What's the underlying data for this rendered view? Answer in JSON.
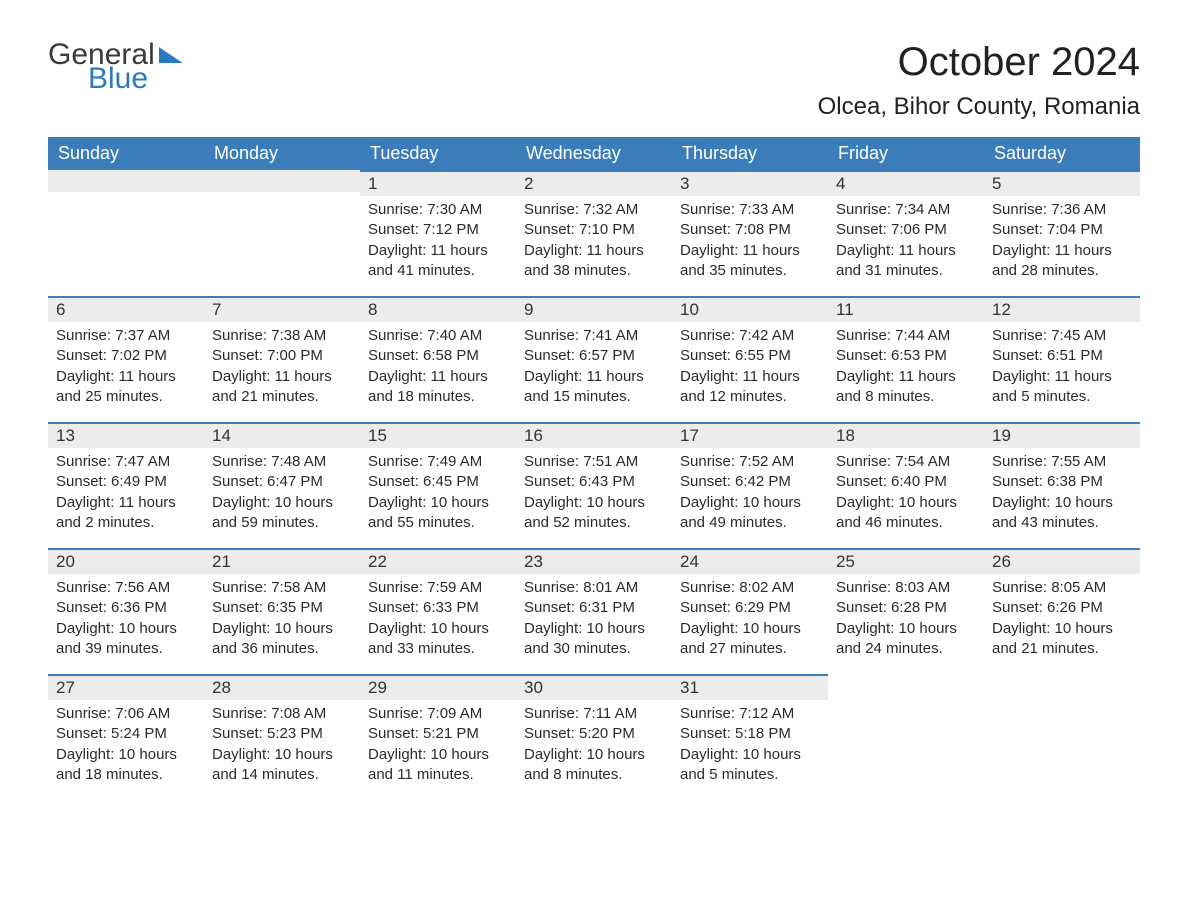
{
  "brand": {
    "word1": "General",
    "word2": "Blue"
  },
  "title": "October 2024",
  "location": "Olcea, Bihor County, Romania",
  "colors": {
    "header_bg": "#3b7dbb",
    "header_text": "#ffffff",
    "daynum_bg": "#ececec",
    "daynum_border": "#3b7dbb",
    "body_text": "#2b2b2b",
    "brand_blue": "#2a7ac0",
    "page_bg": "#ffffff"
  },
  "day_names": [
    "Sunday",
    "Monday",
    "Tuesday",
    "Wednesday",
    "Thursday",
    "Friday",
    "Saturday"
  ],
  "weeks": [
    [
      null,
      null,
      {
        "n": "1",
        "sunrise": "7:30 AM",
        "sunset": "7:12 PM",
        "daylight": "11 hours and 41 minutes."
      },
      {
        "n": "2",
        "sunrise": "7:32 AM",
        "sunset": "7:10 PM",
        "daylight": "11 hours and 38 minutes."
      },
      {
        "n": "3",
        "sunrise": "7:33 AM",
        "sunset": "7:08 PM",
        "daylight": "11 hours and 35 minutes."
      },
      {
        "n": "4",
        "sunrise": "7:34 AM",
        "sunset": "7:06 PM",
        "daylight": "11 hours and 31 minutes."
      },
      {
        "n": "5",
        "sunrise": "7:36 AM",
        "sunset": "7:04 PM",
        "daylight": "11 hours and 28 minutes."
      }
    ],
    [
      {
        "n": "6",
        "sunrise": "7:37 AM",
        "sunset": "7:02 PM",
        "daylight": "11 hours and 25 minutes."
      },
      {
        "n": "7",
        "sunrise": "7:38 AM",
        "sunset": "7:00 PM",
        "daylight": "11 hours and 21 minutes."
      },
      {
        "n": "8",
        "sunrise": "7:40 AM",
        "sunset": "6:58 PM",
        "daylight": "11 hours and 18 minutes."
      },
      {
        "n": "9",
        "sunrise": "7:41 AM",
        "sunset": "6:57 PM",
        "daylight": "11 hours and 15 minutes."
      },
      {
        "n": "10",
        "sunrise": "7:42 AM",
        "sunset": "6:55 PM",
        "daylight": "11 hours and 12 minutes."
      },
      {
        "n": "11",
        "sunrise": "7:44 AM",
        "sunset": "6:53 PM",
        "daylight": "11 hours and 8 minutes."
      },
      {
        "n": "12",
        "sunrise": "7:45 AM",
        "sunset": "6:51 PM",
        "daylight": "11 hours and 5 minutes."
      }
    ],
    [
      {
        "n": "13",
        "sunrise": "7:47 AM",
        "sunset": "6:49 PM",
        "daylight": "11 hours and 2 minutes."
      },
      {
        "n": "14",
        "sunrise": "7:48 AM",
        "sunset": "6:47 PM",
        "daylight": "10 hours and 59 minutes."
      },
      {
        "n": "15",
        "sunrise": "7:49 AM",
        "sunset": "6:45 PM",
        "daylight": "10 hours and 55 minutes."
      },
      {
        "n": "16",
        "sunrise": "7:51 AM",
        "sunset": "6:43 PM",
        "daylight": "10 hours and 52 minutes."
      },
      {
        "n": "17",
        "sunrise": "7:52 AM",
        "sunset": "6:42 PM",
        "daylight": "10 hours and 49 minutes."
      },
      {
        "n": "18",
        "sunrise": "7:54 AM",
        "sunset": "6:40 PM",
        "daylight": "10 hours and 46 minutes."
      },
      {
        "n": "19",
        "sunrise": "7:55 AM",
        "sunset": "6:38 PM",
        "daylight": "10 hours and 43 minutes."
      }
    ],
    [
      {
        "n": "20",
        "sunrise": "7:56 AM",
        "sunset": "6:36 PM",
        "daylight": "10 hours and 39 minutes."
      },
      {
        "n": "21",
        "sunrise": "7:58 AM",
        "sunset": "6:35 PM",
        "daylight": "10 hours and 36 minutes."
      },
      {
        "n": "22",
        "sunrise": "7:59 AM",
        "sunset": "6:33 PM",
        "daylight": "10 hours and 33 minutes."
      },
      {
        "n": "23",
        "sunrise": "8:01 AM",
        "sunset": "6:31 PM",
        "daylight": "10 hours and 30 minutes."
      },
      {
        "n": "24",
        "sunrise": "8:02 AM",
        "sunset": "6:29 PM",
        "daylight": "10 hours and 27 minutes."
      },
      {
        "n": "25",
        "sunrise": "8:03 AM",
        "sunset": "6:28 PM",
        "daylight": "10 hours and 24 minutes."
      },
      {
        "n": "26",
        "sunrise": "8:05 AM",
        "sunset": "6:26 PM",
        "daylight": "10 hours and 21 minutes."
      }
    ],
    [
      {
        "n": "27",
        "sunrise": "7:06 AM",
        "sunset": "5:24 PM",
        "daylight": "10 hours and 18 minutes."
      },
      {
        "n": "28",
        "sunrise": "7:08 AM",
        "sunset": "5:23 PM",
        "daylight": "10 hours and 14 minutes."
      },
      {
        "n": "29",
        "sunrise": "7:09 AM",
        "sunset": "5:21 PM",
        "daylight": "10 hours and 11 minutes."
      },
      {
        "n": "30",
        "sunrise": "7:11 AM",
        "sunset": "5:20 PM",
        "daylight": "10 hours and 8 minutes."
      },
      {
        "n": "31",
        "sunrise": "7:12 AM",
        "sunset": "5:18 PM",
        "daylight": "10 hours and 5 minutes."
      },
      null,
      null
    ]
  ],
  "labels": {
    "sunrise_prefix": "Sunrise: ",
    "sunset_prefix": "Sunset: ",
    "daylight_prefix": "Daylight: "
  }
}
